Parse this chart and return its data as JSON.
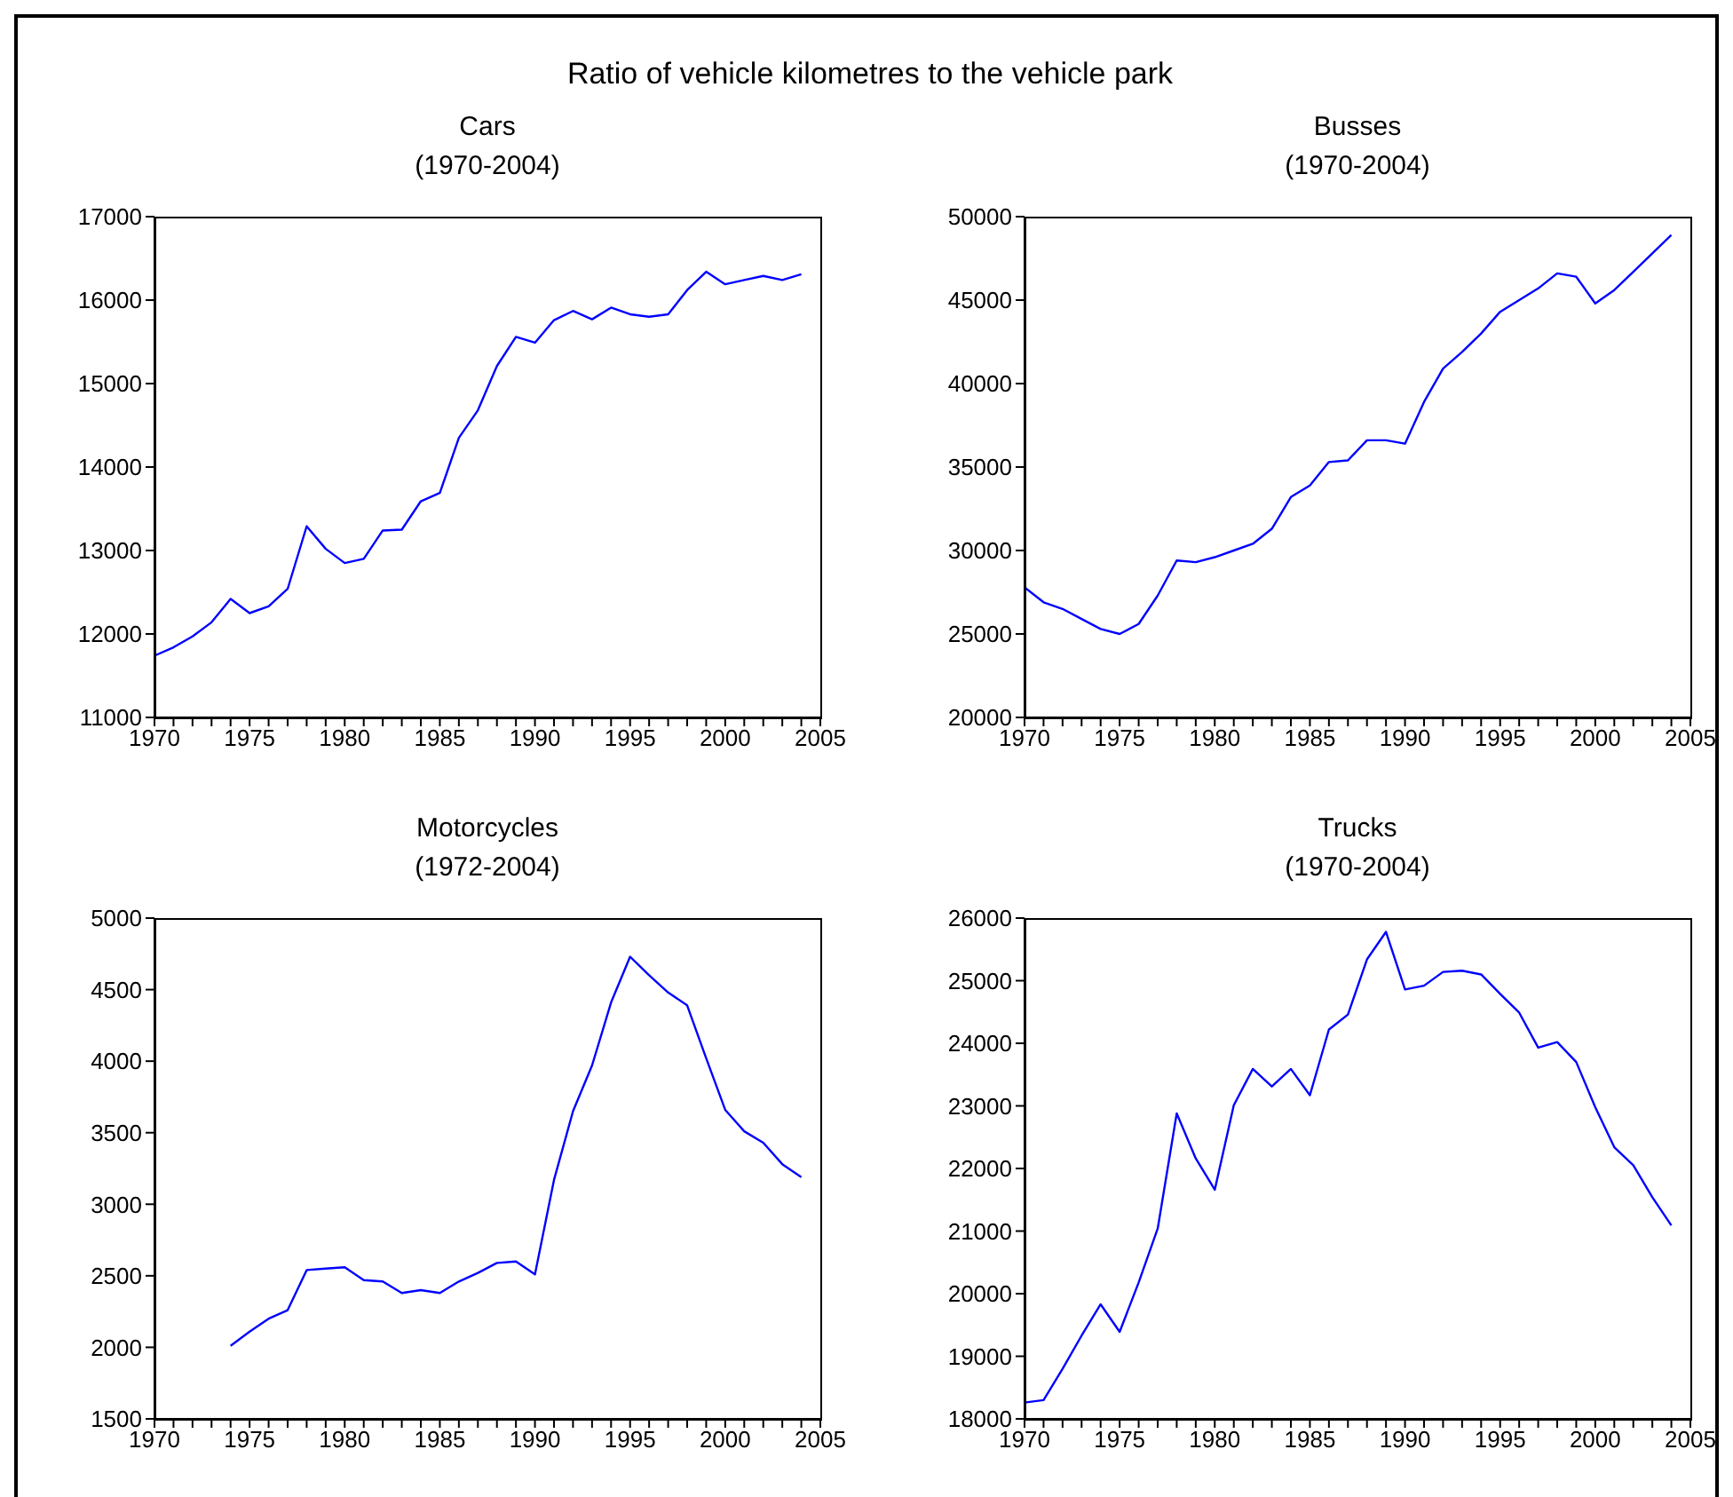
{
  "chart_data": [
    {
      "type": "other",
      "title": "Ratio of vehicle kilometres to the vehicle park"
    },
    {
      "type": "line",
      "title": "Cars",
      "subtitle": "(1970-2004)",
      "x": [
        1970,
        1971,
        1972,
        1973,
        1974,
        1975,
        1976,
        1977,
        1978,
        1979,
        1980,
        1981,
        1982,
        1983,
        1984,
        1985,
        1986,
        1987,
        1988,
        1989,
        1990,
        1991,
        1992,
        1993,
        1994,
        1995,
        1996,
        1997,
        1998,
        1999,
        2000,
        2001,
        2002,
        2003,
        2004
      ],
      "series": [
        {
          "color": "#0000ff",
          "values": [
            11740,
            11840,
            11970,
            12140,
            12420,
            12250,
            12330,
            12540,
            13290,
            13020,
            12850,
            12900,
            13240,
            13250,
            13590,
            13690,
            14350,
            14680,
            15210,
            15560,
            15490,
            15760,
            15870,
            15770,
            15910,
            15830,
            15800,
            15830,
            16120,
            16340,
            16190,
            16240,
            16290,
            16240,
            16310
          ]
        }
      ],
      "xlim": [
        1970,
        2005
      ],
      "xticks": [
        1970,
        {
          "value": 1971,
          "label": null
        },
        {
          "value": 1972,
          "label": null
        },
        {
          "value": 1973,
          "label": null
        },
        {
          "value": 1974,
          "label": null
        },
        1975,
        {
          "value": 1976,
          "label": null
        },
        {
          "value": 1977,
          "label": null
        },
        {
          "value": 1978,
          "label": null
        },
        {
          "value": 1979,
          "label": null
        },
        1980,
        {
          "value": 1981,
          "label": null
        },
        {
          "value": 1982,
          "label": null
        },
        {
          "value": 1983,
          "label": null
        },
        {
          "value": 1984,
          "label": null
        },
        1985,
        {
          "value": 1986,
          "label": null
        },
        {
          "value": 1987,
          "label": null
        },
        {
          "value": 1988,
          "label": null
        },
        {
          "value": 1989,
          "label": null
        },
        1990,
        {
          "value": 1991,
          "label": null
        },
        {
          "value": 1992,
          "label": null
        },
        {
          "value": 1993,
          "label": null
        },
        {
          "value": 1994,
          "label": null
        },
        1995,
        {
          "value": 1996,
          "label": null
        },
        {
          "value": 1997,
          "label": null
        },
        {
          "value": 1998,
          "label": null
        },
        {
          "value": 1999,
          "label": null
        },
        2000,
        {
          "value": 2001,
          "label": null
        },
        {
          "value": 2002,
          "label": null
        },
        {
          "value": 2003,
          "label": null
        },
        {
          "value": 2004,
          "label": null
        },
        2005
      ],
      "ylim": [
        11000,
        17000
      ],
      "yticks": [
        11000,
        12000,
        13000,
        14000,
        15000,
        16000,
        17000
      ]
    },
    {
      "type": "line",
      "title": "Busses",
      "subtitle": "(1970-2004)",
      "x": [
        1970,
        1971,
        1972,
        1973,
        1974,
        1975,
        1976,
        1977,
        1978,
        1979,
        1980,
        1981,
        1982,
        1983,
        1984,
        1985,
        1986,
        1987,
        1988,
        1989,
        1990,
        1991,
        1992,
        1993,
        1994,
        1995,
        1996,
        1997,
        1998,
        1999,
        2000,
        2001,
        2002,
        2003,
        2004
      ],
      "series": [
        {
          "color": "#0000ff",
          "values": [
            27800,
            26900,
            26500,
            25900,
            25300,
            25000,
            25600,
            27300,
            29400,
            29300,
            29600,
            30000,
            30400,
            31300,
            33200,
            33900,
            35300,
            35400,
            36600,
            36600,
            36400,
            38900,
            40900,
            41900,
            43000,
            44300,
            45000,
            45700,
            46600,
            46400,
            44800,
            45600,
            46700,
            47800,
            48900
          ]
        }
      ],
      "xlim": [
        1970,
        2005
      ],
      "xticks": [
        1970,
        {
          "value": 1971,
          "label": null
        },
        {
          "value": 1972,
          "label": null
        },
        {
          "value": 1973,
          "label": null
        },
        {
          "value": 1974,
          "label": null
        },
        1975,
        {
          "value": 1976,
          "label": null
        },
        {
          "value": 1977,
          "label": null
        },
        {
          "value": 1978,
          "label": null
        },
        {
          "value": 1979,
          "label": null
        },
        1980,
        {
          "value": 1981,
          "label": null
        },
        {
          "value": 1982,
          "label": null
        },
        {
          "value": 1983,
          "label": null
        },
        {
          "value": 1984,
          "label": null
        },
        1985,
        {
          "value": 1986,
          "label": null
        },
        {
          "value": 1987,
          "label": null
        },
        {
          "value": 1988,
          "label": null
        },
        {
          "value": 1989,
          "label": null
        },
        1990,
        {
          "value": 1991,
          "label": null
        },
        {
          "value": 1992,
          "label": null
        },
        {
          "value": 1993,
          "label": null
        },
        {
          "value": 1994,
          "label": null
        },
        1995,
        {
          "value": 1996,
          "label": null
        },
        {
          "value": 1997,
          "label": null
        },
        {
          "value": 1998,
          "label": null
        },
        {
          "value": 1999,
          "label": null
        },
        2000,
        {
          "value": 2001,
          "label": null
        },
        {
          "value": 2002,
          "label": null
        },
        {
          "value": 2003,
          "label": null
        },
        {
          "value": 2004,
          "label": null
        },
        2005
      ],
      "ylim": [
        20000,
        50000
      ],
      "yticks": [
        20000,
        25000,
        30000,
        35000,
        40000,
        45000,
        50000
      ]
    },
    {
      "type": "line",
      "title": "Motorcycles",
      "subtitle": "(1972-2004)",
      "x": [
        1974,
        1975,
        1976,
        1977,
        1978,
        1979,
        1980,
        1981,
        1982,
        1983,
        1984,
        1985,
        1986,
        1987,
        1988,
        1989,
        1990,
        1991,
        1992,
        1993,
        1994,
        1995,
        1996,
        1997,
        1998,
        1999,
        2000,
        2001,
        2002,
        2003,
        2004
      ],
      "series": [
        {
          "color": "#0000ff",
          "values": [
            2010,
            2110,
            2200,
            2260,
            2540,
            2550,
            2560,
            2470,
            2460,
            2380,
            2400,
            2380,
            2460,
            2520,
            2590,
            2600,
            2510,
            3170,
            3650,
            3970,
            4410,
            4730,
            4600,
            4480,
            4390,
            4020,
            3660,
            3510,
            3430,
            3280,
            3190
          ]
        }
      ],
      "xlim": [
        1970,
        2005
      ],
      "xticks": [
        1970,
        {
          "value": 1971,
          "label": null
        },
        {
          "value": 1972,
          "label": null
        },
        {
          "value": 1973,
          "label": null
        },
        {
          "value": 1974,
          "label": null
        },
        1975,
        {
          "value": 1976,
          "label": null
        },
        {
          "value": 1977,
          "label": null
        },
        {
          "value": 1978,
          "label": null
        },
        {
          "value": 1979,
          "label": null
        },
        1980,
        {
          "value": 1981,
          "label": null
        },
        {
          "value": 1982,
          "label": null
        },
        {
          "value": 1983,
          "label": null
        },
        {
          "value": 1984,
          "label": null
        },
        1985,
        {
          "value": 1986,
          "label": null
        },
        {
          "value": 1987,
          "label": null
        },
        {
          "value": 1988,
          "label": null
        },
        {
          "value": 1989,
          "label": null
        },
        1990,
        {
          "value": 1991,
          "label": null
        },
        {
          "value": 1992,
          "label": null
        },
        {
          "value": 1993,
          "label": null
        },
        {
          "value": 1994,
          "label": null
        },
        1995,
        {
          "value": 1996,
          "label": null
        },
        {
          "value": 1997,
          "label": null
        },
        {
          "value": 1998,
          "label": null
        },
        {
          "value": 1999,
          "label": null
        },
        2000,
        {
          "value": 2001,
          "label": null
        },
        {
          "value": 2002,
          "label": null
        },
        {
          "value": 2003,
          "label": null
        },
        {
          "value": 2004,
          "label": null
        },
        2005
      ],
      "ylim": [
        1500,
        5000
      ],
      "yticks": [
        1500,
        2000,
        2500,
        3000,
        3500,
        4000,
        4500,
        5000
      ]
    },
    {
      "type": "line",
      "title": "Trucks",
      "subtitle": "(1970-2004)",
      "x": [
        1970,
        1971,
        1972,
        1973,
        1974,
        1975,
        1976,
        1977,
        1978,
        1979,
        1980,
        1981,
        1982,
        1983,
        1984,
        1985,
        1986,
        1987,
        1988,
        1989,
        1990,
        1991,
        1992,
        1993,
        1994,
        1995,
        1996,
        1997,
        1998,
        1999,
        2000,
        2001,
        2002,
        2003,
        2004
      ],
      "series": [
        {
          "color": "#0000ff",
          "values": [
            18260,
            18300,
            18800,
            19330,
            19830,
            19390,
            20180,
            21040,
            22880,
            22160,
            21660,
            23010,
            23590,
            23310,
            23590,
            23170,
            24220,
            24460,
            25340,
            25780,
            24860,
            24920,
            25140,
            25160,
            25100,
            24790,
            24490,
            23930,
            24020,
            23700,
            22980,
            22340,
            22050,
            21540,
            21090
          ]
        }
      ],
      "xlim": [
        1970,
        2005
      ],
      "xticks": [
        1970,
        {
          "value": 1971,
          "label": null
        },
        {
          "value": 1972,
          "label": null
        },
        {
          "value": 1973,
          "label": null
        },
        {
          "value": 1974,
          "label": null
        },
        1975,
        {
          "value": 1976,
          "label": null
        },
        {
          "value": 1977,
          "label": null
        },
        {
          "value": 1978,
          "label": null
        },
        {
          "value": 1979,
          "label": null
        },
        1980,
        {
          "value": 1981,
          "label": null
        },
        {
          "value": 1982,
          "label": null
        },
        {
          "value": 1983,
          "label": null
        },
        {
          "value": 1984,
          "label": null
        },
        1985,
        {
          "value": 1986,
          "label": null
        },
        {
          "value": 1987,
          "label": null
        },
        {
          "value": 1988,
          "label": null
        },
        {
          "value": 1989,
          "label": null
        },
        1990,
        {
          "value": 1991,
          "label": null
        },
        {
          "value": 1992,
          "label": null
        },
        {
          "value": 1993,
          "label": null
        },
        {
          "value": 1994,
          "label": null
        },
        1995,
        {
          "value": 1996,
          "label": null
        },
        {
          "value": 1997,
          "label": null
        },
        {
          "value": 1998,
          "label": null
        },
        {
          "value": 1999,
          "label": null
        },
        2000,
        {
          "value": 2001,
          "label": null
        },
        {
          "value": 2002,
          "label": null
        },
        {
          "value": 2003,
          "label": null
        },
        {
          "value": 2004,
          "label": null
        },
        2005
      ],
      "ylim": [
        18000,
        26000
      ],
      "yticks": [
        18000,
        19000,
        20000,
        21000,
        22000,
        23000,
        24000,
        25000,
        26000
      ]
    }
  ]
}
